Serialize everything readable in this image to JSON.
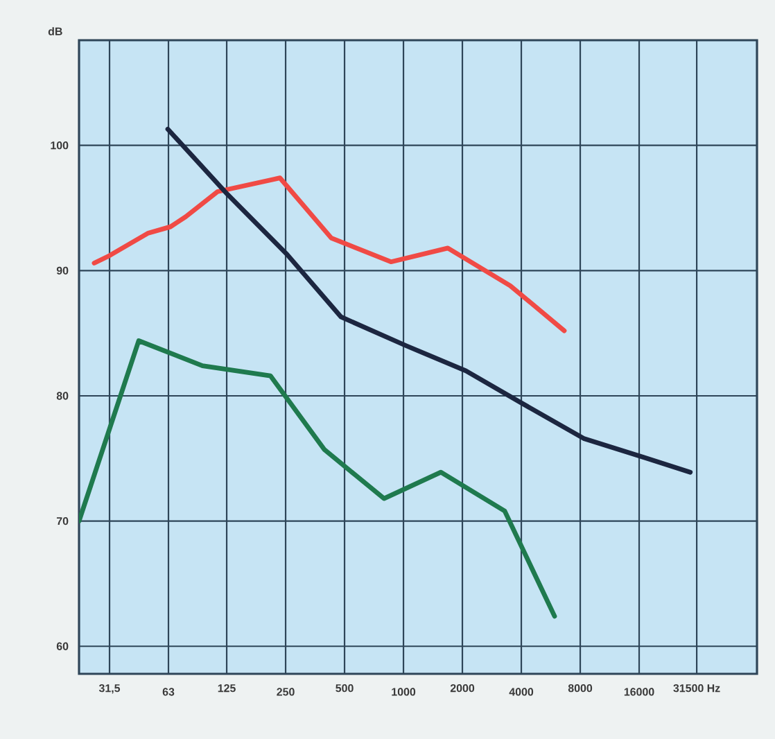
{
  "chart_data": {
    "type": "line",
    "ylabel": "dB",
    "log": "x",
    "grid": true,
    "xlim": [
      22,
      64000
    ],
    "ylim": [
      57.8,
      108.4
    ],
    "xticks": [
      {
        "value": 31.5,
        "label": "31,5"
      },
      63,
      125,
      250,
      500,
      1000,
      2000,
      4000,
      8000,
      16000,
      {
        "value": 31500,
        "label": "31500 Hz"
      }
    ],
    "yticks": [
      60,
      70,
      80,
      90,
      100
    ],
    "series": [
      {
        "color": "#f04a45",
        "x": [
          26.3,
          31.5,
          49.7,
          64.5,
          77.2,
          112,
          234,
          428,
          863,
          1685,
          3510,
          6630
        ],
        "values": [
          90.6,
          91.2,
          93.0,
          93.5,
          94.3,
          96.3,
          97.4,
          92.6,
          90.7,
          91.8,
          88.8,
          85.2
        ]
      },
      {
        "color": "#1c2640",
        "x": [
          62.5,
          126,
          254,
          480,
          1033,
          2083,
          3935,
          8330,
          16800,
          29200
        ],
        "values": [
          101.3,
          96.1,
          91.3,
          86.3,
          84.0,
          82.0,
          79.5,
          76.6,
          75.1,
          73.9
        ]
      },
      {
        "color": "#1f7a4e",
        "x": [
          22,
          44.4,
          94,
          209,
          395,
          796,
          1553,
          3290,
          5915
        ],
        "values": [
          70.0,
          84.4,
          82.4,
          81.6,
          75.7,
          71.8,
          73.9,
          70.8,
          62.4
        ]
      }
    ]
  }
}
